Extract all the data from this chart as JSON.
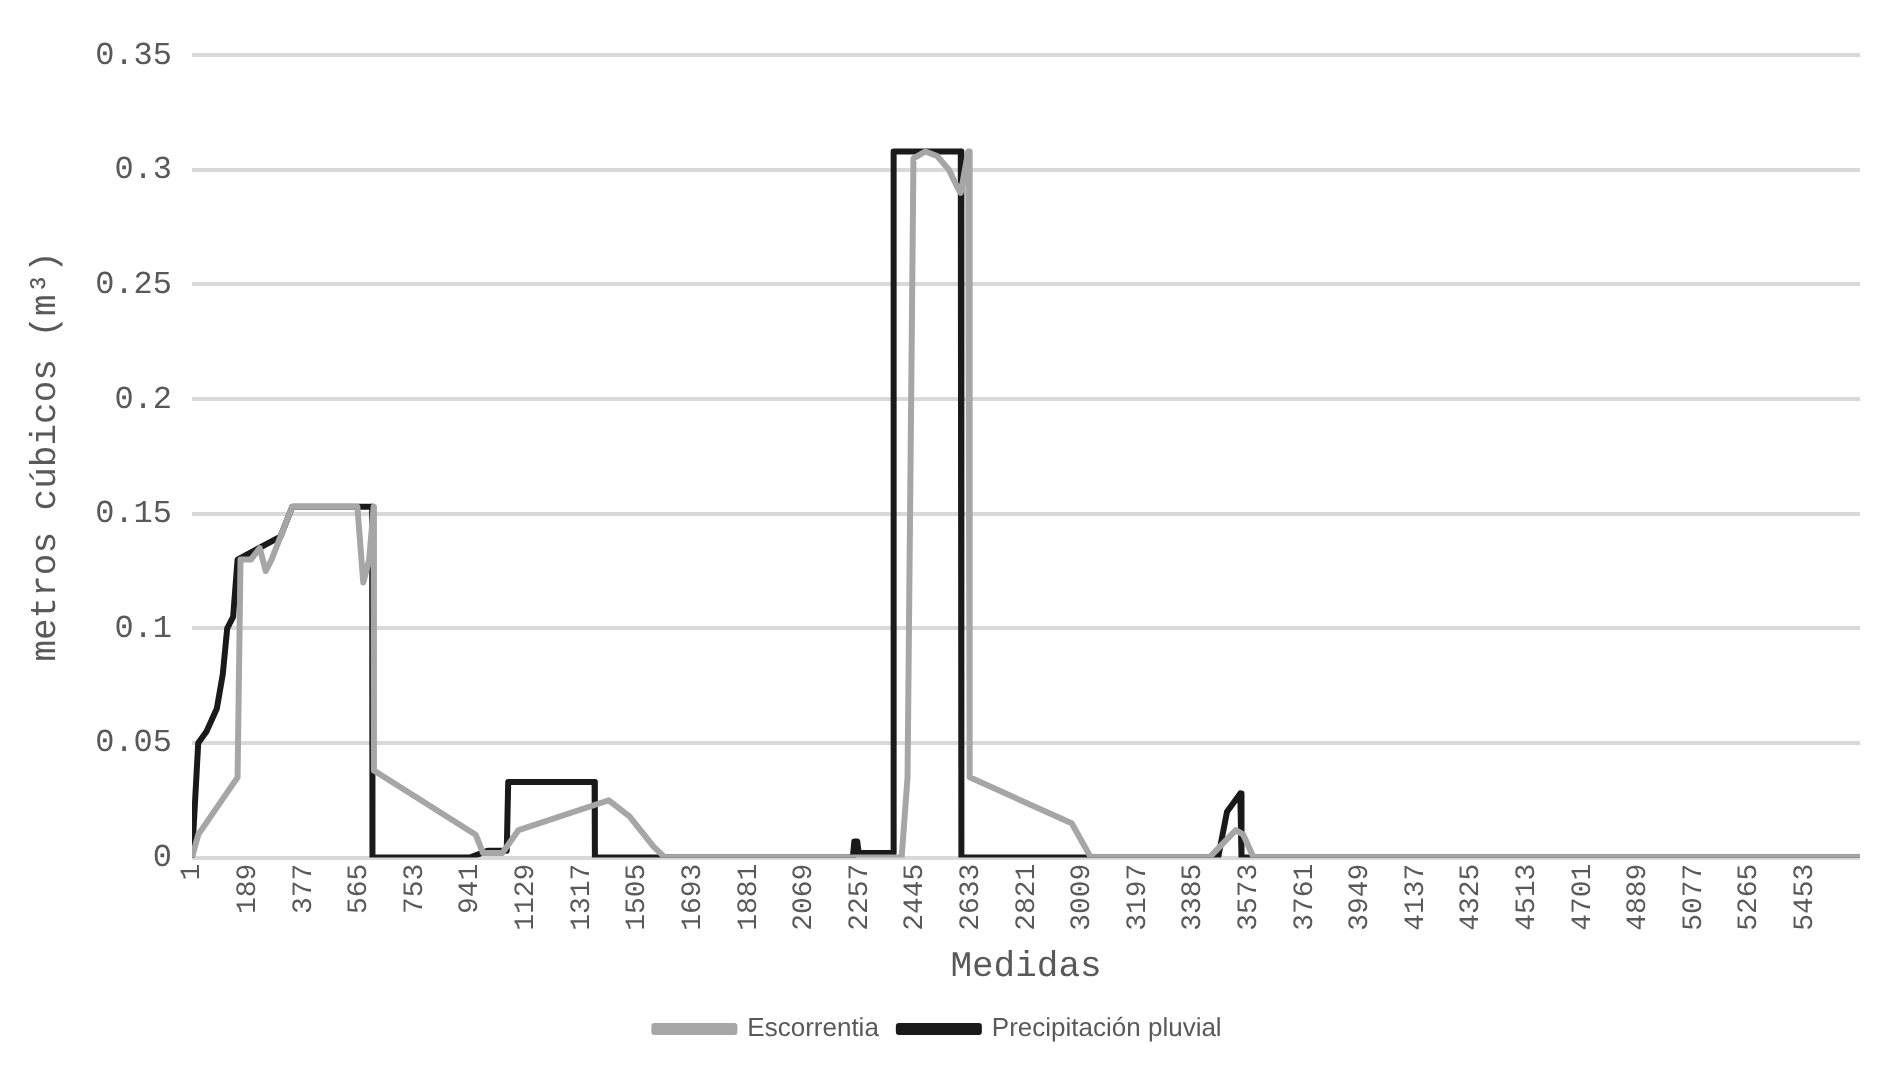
{
  "chart_data": {
    "type": "line",
    "xlabel": "Medidas",
    "ylabel": "metros cúbicos (m³)",
    "xlim": [
      1,
      5640
    ],
    "xticks": [
      1,
      189,
      377,
      565,
      753,
      941,
      1129,
      1317,
      1505,
      1693,
      1881,
      2069,
      2257,
      2445,
      2633,
      2821,
      3009,
      3197,
      3385,
      3573,
      3761,
      3949,
      4137,
      4325,
      4513,
      4701,
      4889,
      5077,
      5265,
      5453
    ],
    "ylim": [
      0,
      0.35
    ],
    "yticks": [
      0,
      0.05,
      0.1,
      0.15,
      0.2,
      0.25,
      0.3,
      0.35
    ],
    "grid": "y",
    "legend": "bottom",
    "marker": "none",
    "line_style": "solid",
    "series": [
      {
        "name": "Escorrentia",
        "color": "#a6a6a6",
        "x": [
          1,
          22,
          155,
          165,
          200,
          230,
          250,
          270,
          300,
          340,
          560,
          580,
          600,
          615,
          616,
          960,
          985,
          1050,
          1105,
          1410,
          1480,
          1560,
          1600,
          2400,
          2420,
          2440,
          2480,
          2520,
          2560,
          2590,
          2600,
          2625,
          2630,
          2975,
          3040,
          3440,
          3530,
          3555,
          3590,
          5640
        ],
        "values": [
          0,
          0.01,
          0.035,
          0.13,
          0.13,
          0.135,
          0.125,
          0.13,
          0.14,
          0.153,
          0.153,
          0.12,
          0.13,
          0.153,
          0.038,
          0.01,
          0.002,
          0.002,
          0.012,
          0.025,
          0.018,
          0.005,
          0,
          0,
          0.035,
          0.305,
          0.308,
          0.306,
          0.3,
          0.292,
          0.29,
          0.308,
          0.035,
          0.015,
          0,
          0,
          0.012,
          0.01,
          0,
          0
        ]
      },
      {
        "name": "Precipitación pluvial",
        "color": "#1a1a1a",
        "x": [
          1,
          22,
          50,
          85,
          105,
          120,
          140,
          155,
          300,
          340,
          610,
          611,
          940,
          1000,
          1065,
          1070,
          1362,
          1363,
          2235,
          2240,
          2250,
          2255,
          2372,
          2373,
          2410,
          2600,
          2602,
          3470,
          3500,
          3545,
          3548,
          3550,
          5640
        ],
        "values": [
          0,
          0.05,
          0.055,
          0.065,
          0.08,
          0.1,
          0.105,
          0.13,
          0.14,
          0.153,
          0.153,
          0,
          0,
          0.003,
          0.003,
          0.033,
          0.033,
          0,
          0,
          0.007,
          0.007,
          0.002,
          0.002,
          0.308,
          0.308,
          0.308,
          0,
          0,
          0.02,
          0.028,
          0.028,
          0,
          0
        ]
      }
    ]
  }
}
